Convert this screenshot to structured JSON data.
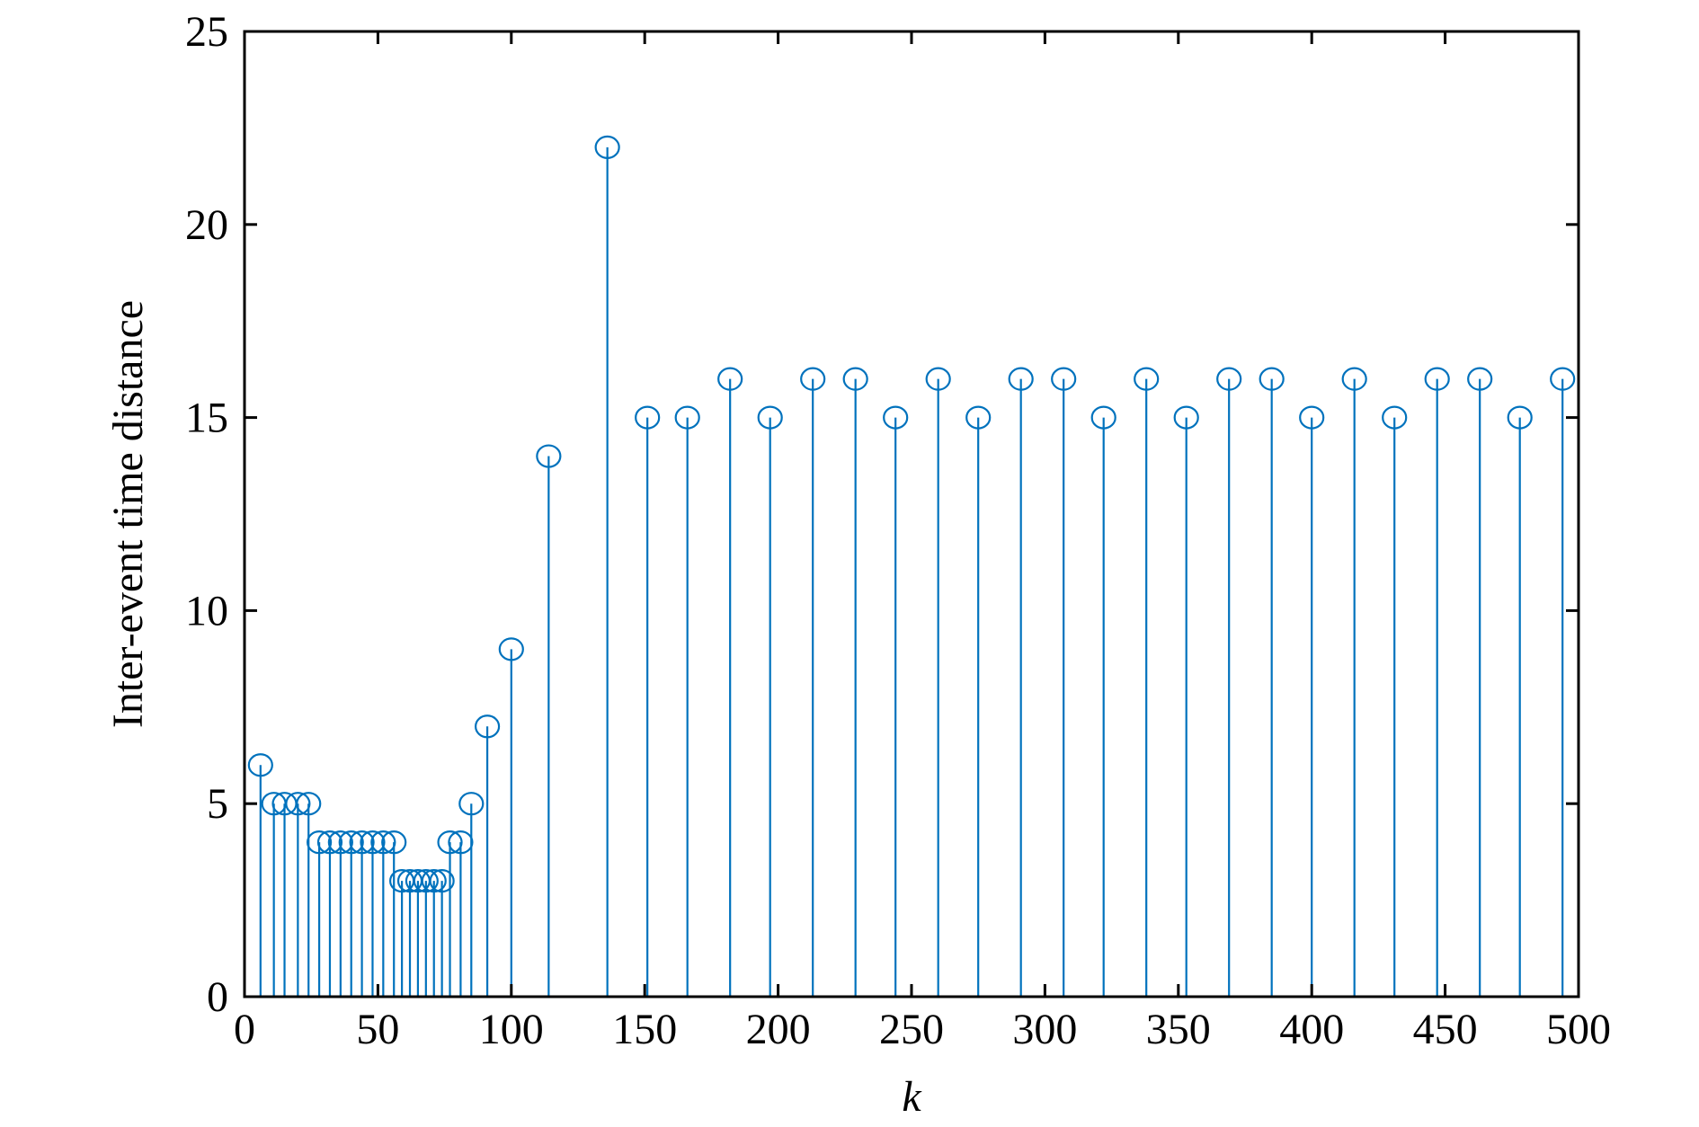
{
  "chart_data": {
    "type": "stem",
    "title": "",
    "xlabel": "k",
    "ylabel": "Inter-event time distance",
    "xlim": [
      0,
      500
    ],
    "ylim": [
      0,
      25
    ],
    "xticks": [
      "0",
      "50",
      "100",
      "150",
      "200",
      "250",
      "300",
      "350",
      "400",
      "450",
      "500"
    ],
    "yticks": [
      "0",
      "5",
      "10",
      "15",
      "20",
      "25"
    ],
    "grid": false,
    "series": [
      {
        "x": [
          6,
          11,
          15,
          20,
          24,
          28,
          32,
          36,
          40,
          44,
          48,
          52,
          56,
          59,
          62,
          65,
          68,
          71,
          74,
          77,
          81,
          85,
          91,
          100,
          114,
          136,
          151,
          166,
          182,
          197,
          213,
          229,
          244,
          260,
          275,
          291,
          307,
          322,
          338,
          353,
          369,
          385,
          400,
          416,
          431,
          447,
          463,
          478,
          494
        ],
        "y": [
          6,
          5,
          5,
          5,
          5,
          4,
          4,
          4,
          4,
          4,
          4,
          4,
          4,
          3,
          3,
          3,
          3,
          3,
          3,
          4,
          4,
          5,
          7,
          9,
          14,
          22,
          15,
          15,
          16,
          15,
          16,
          16,
          15,
          16,
          15,
          16,
          16,
          15,
          16,
          15,
          16,
          16,
          15,
          16,
          15,
          16,
          16,
          15,
          16
        ]
      }
    ]
  },
  "colors": {
    "stem": "#0072BD",
    "axis": "#000000"
  }
}
